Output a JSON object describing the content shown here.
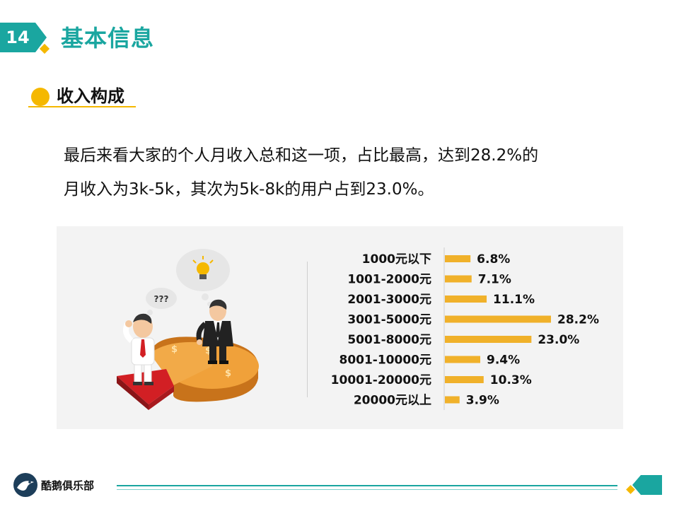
{
  "header": {
    "page_number": "14",
    "title": "基本信息"
  },
  "section": {
    "title": "收入构成"
  },
  "body": {
    "line1": "最后来看大家的个人月收入总和这一项，占比最高，达到28.2%的",
    "line2": "月收入为3k-5k，其次为5k-8k的用户占到23.0%。"
  },
  "illustration": {
    "thought_text": "???",
    "icons": [
      "person-confused-icon",
      "person-idea-icon",
      "lightbulb-icon",
      "pie-3d-icon",
      "dollar-icon"
    ]
  },
  "chart_data": {
    "type": "bar",
    "orientation": "horizontal",
    "categories": [
      "1000元以下",
      "1001-2000元",
      "2001-3000元",
      "3001-5000元",
      "5001-8000元",
      "8001-10000元",
      "10001-20000元",
      "20000元以上"
    ],
    "values": [
      6.8,
      7.1,
      11.1,
      28.2,
      23.0,
      9.4,
      10.3,
      3.9
    ],
    "value_labels": [
      "6.8%",
      "7.1%",
      "11.1%",
      "28.2%",
      "23.0%",
      "9.4%",
      "10.3%",
      "3.9%"
    ],
    "xlim": [
      0,
      30
    ],
    "bar_color": "#f0b12a",
    "grid": false
  },
  "footer": {
    "brand": "酷鹅俱乐部"
  },
  "colors": {
    "accent": "#1aa6a0",
    "highlight": "#f5b800",
    "bar": "#f0b12a"
  }
}
